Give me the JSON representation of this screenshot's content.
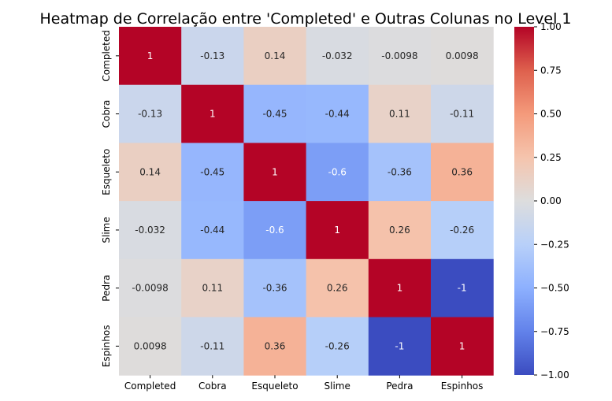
{
  "chart_data": {
    "type": "heatmap",
    "title": "Heatmap de Correlação entre 'Completed' e Outras Colunas no Level 1",
    "xlabel": "",
    "ylabel": "",
    "x_categories": [
      "Completed",
      "Cobra",
      "Esqueleto",
      "Slime",
      "Pedra",
      "Espinhos"
    ],
    "y_categories": [
      "Completed",
      "Cobra",
      "Esqueleto",
      "Slime",
      "Pedra",
      "Espinhos"
    ],
    "values": [
      [
        1,
        -0.13,
        0.14,
        -0.032,
        -0.0098,
        0.0098
      ],
      [
        -0.13,
        1,
        -0.45,
        -0.44,
        0.11,
        -0.11
      ],
      [
        0.14,
        -0.45,
        1,
        -0.6,
        -0.36,
        0.36
      ],
      [
        -0.032,
        -0.44,
        -0.6,
        1,
        0.26,
        -0.26
      ],
      [
        -0.0098,
        0.11,
        -0.36,
        0.26,
        1,
        -1
      ],
      [
        0.0098,
        -0.11,
        0.36,
        -0.26,
        -1,
        1
      ]
    ],
    "value_labels": [
      [
        "1",
        "-0.13",
        "0.14",
        "-0.032",
        "-0.0098",
        "0.0098"
      ],
      [
        "-0.13",
        "1",
        "-0.45",
        "-0.44",
        "0.11",
        "-0.11"
      ],
      [
        "0.14",
        "-0.45",
        "1",
        "-0.6",
        "-0.36",
        "0.36"
      ],
      [
        "-0.032",
        "-0.44",
        "-0.6",
        "1",
        "0.26",
        "-0.26"
      ],
      [
        "-0.0098",
        "0.11",
        "-0.36",
        "0.26",
        "1",
        "-1"
      ],
      [
        "0.0098",
        "-0.11",
        "0.36",
        "-0.26",
        "-1",
        "1"
      ]
    ],
    "colormap": "coolwarm",
    "vmin": -1,
    "vmax": 1,
    "colorbar_ticks": [
      1,
      0.75,
      0.5,
      0.25,
      0,
      -0.25,
      -0.5,
      -0.75,
      -1
    ],
    "colorbar_tick_labels": [
      "1.00",
      "0.75",
      "0.50",
      "0.25",
      "0.00",
      "−0.25",
      "−0.50",
      "−0.75",
      "−1.00"
    ],
    "colors": {
      "low": "#3b4cc0",
      "mid": "#dddddd",
      "high": "#b40426"
    }
  }
}
